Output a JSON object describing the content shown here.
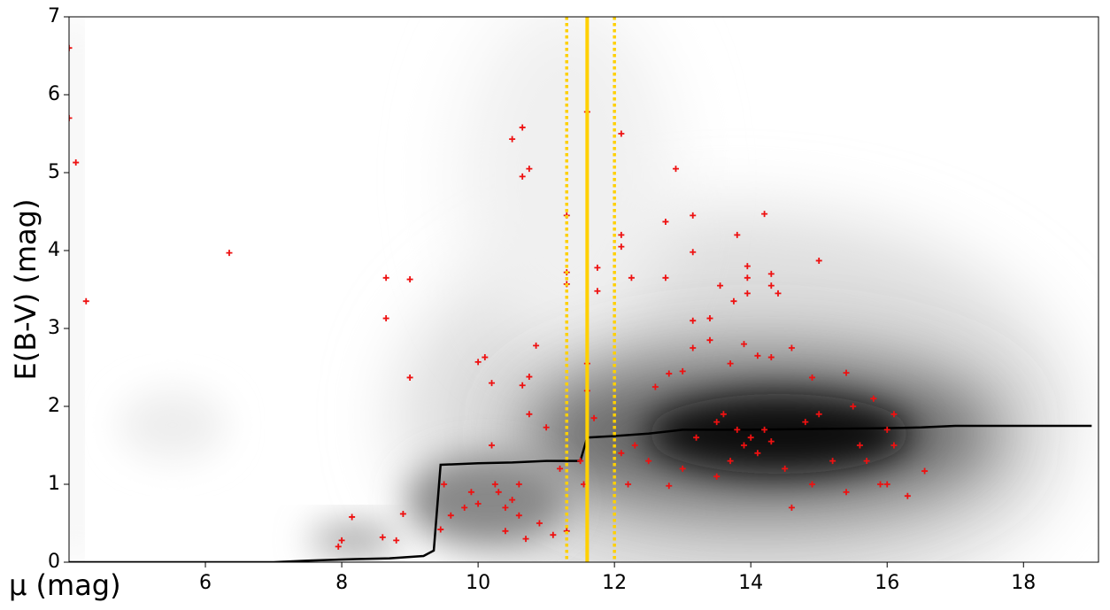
{
  "chart_data": {
    "type": "scatter",
    "x_label": "μ (mag)",
    "y_label": "E(B-V) (mag)",
    "xlim": [
      4,
      19.1
    ],
    "ylim": [
      0,
      7
    ],
    "xticks": [
      6,
      8,
      10,
      12,
      14,
      16,
      18
    ],
    "yticks": [
      0,
      1,
      2,
      3,
      4,
      5,
      6,
      7
    ],
    "vlines": [
      {
        "x": 11.3,
        "color": "#ffd000",
        "style": "dotted"
      },
      {
        "x": 11.6,
        "color": "#ffd000",
        "style": "solid"
      },
      {
        "x": 12.0,
        "color": "#ffd000",
        "style": "dotted"
      }
    ],
    "series": [
      {
        "mode": "line",
        "color": "#000000",
        "x": [
          4,
          7,
          7.5,
          8.2,
          8.7,
          9.2,
          9.35,
          9.45,
          10,
          10.5,
          11,
          11.5,
          11.6,
          12,
          12.5,
          13,
          14,
          15,
          16,
          16.5,
          17,
          19
        ],
        "values": [
          0,
          0,
          0.02,
          0.04,
          0.05,
          0.08,
          0.15,
          1.25,
          1.27,
          1.28,
          1.3,
          1.3,
          1.6,
          1.62,
          1.65,
          1.7,
          1.7,
          1.71,
          1.72,
          1.73,
          1.75,
          1.75
        ]
      },
      {
        "mode": "markers",
        "color": "#ee1111",
        "x": [
          4.0,
          4.0,
          4.1,
          4.25,
          6.35,
          8.65,
          9.0,
          8.65,
          9.0,
          8.15,
          8.9,
          8.6,
          8.8,
          7.95,
          8.0,
          9.45,
          9.5,
          9.6,
          9.8,
          10.0,
          10.0,
          10.1,
          10.2,
          10.2,
          10.3,
          10.4,
          10.5,
          10.5,
          10.6,
          10.65,
          10.65,
          10.65,
          10.75,
          10.75,
          10.75,
          10.85,
          10.7,
          10.9,
          11.0,
          11.1,
          11.3,
          11.3,
          11.3,
          11.3,
          11.55,
          11.6,
          11.6,
          11.6,
          11.75,
          11.75,
          11.7,
          12.1,
          12.1,
          12.1,
          12.25,
          12.9,
          12.75,
          13.15,
          13.15,
          12.75,
          12.8,
          13.15,
          13.15,
          13.4,
          13.4,
          13.55,
          13.75,
          13.8,
          13.95,
          13.95,
          13.95,
          14.2,
          14.3,
          14.3,
          14.4,
          14.6,
          15.0,
          13.7,
          13.9,
          14.1,
          14.3,
          12.6,
          13.0,
          13.5,
          13.6,
          13.8,
          13.9,
          14.0,
          14.1,
          14.2,
          14.3,
          13.7,
          13.5,
          13.0,
          12.5,
          12.2,
          12.8,
          14.5,
          14.6,
          14.9,
          15.0,
          15.4,
          15.5,
          15.6,
          15.7,
          15.8,
          15.9,
          16.0,
          16.0,
          16.1,
          16.1,
          16.3,
          16.55,
          15.2,
          15.4,
          14.8,
          14.9,
          12.1,
          11.5,
          13.2,
          12.3,
          10.25,
          9.9,
          10.4,
          10.6,
          11.2
        ],
        "values": [
          6.6,
          5.7,
          5.13,
          3.35,
          3.97,
          3.65,
          3.63,
          3.13,
          2.37,
          0.58,
          0.62,
          0.32,
          0.28,
          0.2,
          0.28,
          0.42,
          1.0,
          0.6,
          0.7,
          0.75,
          2.57,
          2.63,
          1.5,
          2.3,
          0.9,
          0.7,
          5.43,
          0.8,
          0.6,
          5.58,
          4.95,
          2.27,
          5.05,
          2.38,
          1.9,
          2.78,
          0.3,
          0.5,
          1.73,
          0.35,
          4.45,
          3.72,
          3.57,
          0.4,
          1.0,
          5.78,
          2.55,
          2.2,
          3.78,
          3.48,
          1.85,
          5.5,
          4.2,
          4.05,
          3.65,
          5.05,
          4.37,
          4.45,
          3.98,
          3.65,
          2.42,
          3.1,
          2.75,
          3.13,
          2.85,
          3.55,
          3.35,
          4.2,
          3.8,
          3.65,
          3.45,
          4.47,
          3.7,
          3.55,
          3.45,
          2.75,
          3.87,
          2.55,
          2.8,
          2.65,
          2.63,
          2.25,
          2.45,
          1.8,
          1.9,
          1.7,
          1.5,
          1.6,
          1.4,
          1.7,
          1.55,
          1.3,
          1.1,
          1.2,
          1.3,
          1.0,
          0.98,
          1.2,
          0.7,
          1.0,
          1.9,
          2.43,
          2.0,
          1.5,
          1.3,
          2.1,
          1.0,
          1.7,
          1.0,
          1.5,
          1.9,
          0.85,
          1.17,
          1.3,
          0.9,
          1.8,
          2.37,
          1.4,
          1.3,
          1.6,
          1.5,
          1.0,
          0.9,
          0.4,
          1.0,
          1.2
        ]
      }
    ]
  }
}
